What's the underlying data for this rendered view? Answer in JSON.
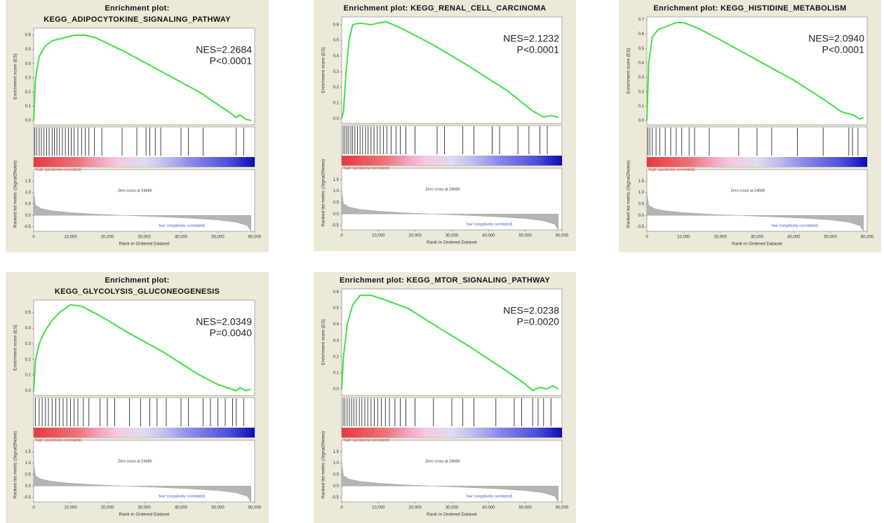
{
  "chart_data": [
    {
      "type": "gsea",
      "title": "Enrichment plot: KEGG_ADIPOCYTOKINE_SIGNALING_PATHWAY",
      "annotations": [
        "NES=2.2684",
        "P<0.0001"
      ],
      "ylabel": "Enrichment score (ES)",
      "metric_label": "Ranked list metric (Signal2Noise)",
      "xlabel": "Rank in Ordered Dataset",
      "high_label": "'high' (positively correlated)",
      "low_label": "'low' (negatively correlated)",
      "zero_cross_label": "Zero cross at 24689",
      "color": "#3fe03f",
      "hit_color": "#111111",
      "metric_color": "#b4b4b4",
      "xlim": [
        0,
        60000
      ],
      "xticks": [
        0,
        {
          "value": 10000,
          "label": "10,000"
        },
        {
          "value": 20000,
          "label": "20,000"
        },
        {
          "value": 30000,
          "label": "30,000"
        },
        {
          "value": 40000,
          "label": "40,000"
        },
        {
          "value": 50000,
          "label": "50,000"
        },
        {
          "value": 60000,
          "label": "60,000"
        }
      ],
      "ylim": [
        -0.03,
        0.65
      ],
      "yticks": [
        {
          "value": 0,
          "label": "0.0"
        },
        0.1,
        0.2,
        0.3,
        0.4,
        0.5,
        0.6
      ],
      "x": [
        0,
        500,
        1500,
        3000,
        5000,
        8000,
        11000,
        14000,
        17000,
        25000,
        35000,
        45000,
        53000,
        55000,
        56000,
        57500,
        59000
      ],
      "values": [
        0,
        0.3,
        0.45,
        0.52,
        0.56,
        0.58,
        0.6,
        0.6,
        0.58,
        0.48,
        0.34,
        0.2,
        0.06,
        0.02,
        0.04,
        0.01,
        0
      ],
      "hits": [
        300,
        800,
        1500,
        2100,
        2800,
        3500,
        4200,
        5000,
        5600,
        6300,
        7000,
        7800,
        8600,
        9400,
        10200,
        11000,
        12000,
        13000,
        14000,
        15000,
        16500,
        18500,
        24000,
        28000,
        30500,
        31500,
        33000,
        34500,
        40000,
        42000,
        46000,
        55000,
        57000
      ],
      "metric_ylim": [
        -0.7,
        2.0
      ],
      "metric_yticks": [
        1.5,
        {
          "value": 1,
          "label": "1.0"
        },
        0.5,
        {
          "value": 0,
          "label": "0.0"
        },
        -0.5
      ],
      "metric_x": [
        0,
        500,
        2000,
        5000,
        10000,
        17000,
        24689,
        32000,
        42000,
        50000,
        55000,
        58000,
        59000
      ],
      "metric_values": [
        1.0,
        0.45,
        0.3,
        0.2,
        0.12,
        0.05,
        0,
        -0.05,
        -0.12,
        -0.2,
        -0.3,
        -0.45,
        -0.7
      ]
    },
    {
      "type": "gsea",
      "title": "Enrichment plot: KEGG_RENAL_CELL_CARCINOMA",
      "annotations": [
        "NES=2.1232",
        "P<0.0001"
      ],
      "ylabel": "Enrichment score (ES)",
      "metric_label": "Ranked list metric (Signal2Noise)",
      "xlabel": "Rank in Ordered Dataset",
      "high_label": "'high' (positively correlated)",
      "low_label": "'low' (negatively correlated)",
      "zero_cross_label": "Zero cross at 24689",
      "color": "#3fe03f",
      "hit_color": "#111111",
      "metric_color": "#b4b4b4",
      "xlim": [
        0,
        60000
      ],
      "xticks": [
        0,
        {
          "value": 10000,
          "label": "10,000"
        },
        {
          "value": 20000,
          "label": "20,000"
        },
        {
          "value": 30000,
          "label": "30,000"
        },
        {
          "value": 40000,
          "label": "40,000"
        },
        {
          "value": 50000,
          "label": "50,000"
        },
        {
          "value": 60000,
          "label": "60,000"
        }
      ],
      "ylim": [
        -0.03,
        0.65
      ],
      "yticks": [
        {
          "value": 0,
          "label": "0.0"
        },
        0.1,
        0.2,
        0.3,
        0.4,
        0.5,
        0.6
      ],
      "x": [
        0,
        500,
        1200,
        2000,
        3000,
        5000,
        8000,
        12000,
        16000,
        25000,
        35000,
        45000,
        52000,
        55000,
        57000,
        59000
      ],
      "values": [
        0,
        0.05,
        0.3,
        0.5,
        0.6,
        0.61,
        0.6,
        0.62,
        0.58,
        0.47,
        0.33,
        0.18,
        0.05,
        0.01,
        0.02,
        0.01
      ],
      "hits": [
        400,
        900,
        1400,
        1900,
        2500,
        3000,
        3600,
        4300,
        5000,
        5700,
        6500,
        7200,
        8000,
        8800,
        9700,
        10500,
        11400,
        12300,
        13500,
        14800,
        16000,
        17500,
        20000,
        26000,
        28000,
        33000,
        36000,
        41000,
        43000,
        48000,
        51000,
        54000,
        56000
      ],
      "metric_ylim": [
        -0.7,
        2.0
      ],
      "metric_yticks": [
        1.5,
        {
          "value": 1,
          "label": "1.0"
        },
        0.5,
        {
          "value": 0,
          "label": "0.0"
        },
        -0.5
      ],
      "metric_x": [
        0,
        500,
        2000,
        5000,
        10000,
        17000,
        24689,
        32000,
        42000,
        50000,
        55000,
        58000,
        59000
      ],
      "metric_values": [
        1.0,
        0.45,
        0.3,
        0.2,
        0.12,
        0.05,
        0,
        -0.05,
        -0.12,
        -0.2,
        -0.3,
        -0.45,
        -0.7
      ]
    },
    {
      "type": "gsea",
      "title": "Enrichment plot: KEGG_HISTIDINE_METABOLISM",
      "annotations": [
        "NES=2.0940",
        "P<0.0001"
      ],
      "ylabel": "Enrichment score (ES)",
      "metric_label": "Ranked list metric (Signal2Noise)",
      "xlabel": "Rank in Ordered Dataset",
      "high_label": "'high' (positively correlated)",
      "low_label": "'low' (negatively correlated)",
      "zero_cross_label": "Zero cross at 24689",
      "color": "#3fe03f",
      "hit_color": "#111111",
      "metric_color": "#b4b4b4",
      "xlim": [
        0,
        60000
      ],
      "xticks": [
        0,
        {
          "value": 10000,
          "label": "10,000"
        },
        {
          "value": 20000,
          "label": "20,000"
        },
        {
          "value": 30000,
          "label": "30,000"
        },
        {
          "value": 40000,
          "label": "40,000"
        },
        {
          "value": 50000,
          "label": "50,000"
        },
        {
          "value": 60000,
          "label": "60,000"
        }
      ],
      "ylim": [
        -0.03,
        0.72
      ],
      "yticks": [
        {
          "value": 0,
          "label": "0.0"
        },
        0.1,
        0.2,
        0.3,
        0.4,
        0.5,
        0.6,
        0.7
      ],
      "x": [
        0,
        500,
        1500,
        3000,
        5000,
        8000,
        10000,
        14000,
        20000,
        30000,
        40000,
        48000,
        53000,
        56000,
        58000,
        59000
      ],
      "values": [
        0,
        0.4,
        0.58,
        0.63,
        0.65,
        0.68,
        0.68,
        0.64,
        0.56,
        0.42,
        0.28,
        0.15,
        0.06,
        0.04,
        0.01,
        0.02
      ],
      "hits": [
        300,
        800,
        1500,
        2500,
        3500,
        5000,
        6500,
        8000,
        9500,
        11500,
        13000,
        17000,
        25000,
        30000,
        34000,
        41000,
        48000,
        55000,
        56000,
        57500
      ],
      "metric_ylim": [
        -0.7,
        2.0
      ],
      "metric_yticks": [
        1.5,
        {
          "value": 1,
          "label": "1.0"
        },
        0.5,
        {
          "value": 0,
          "label": "0.0"
        },
        -0.5
      ],
      "metric_x": [
        0,
        500,
        2000,
        5000,
        10000,
        17000,
        24689,
        32000,
        42000,
        50000,
        55000,
        58000,
        59000
      ],
      "metric_values": [
        1.0,
        0.45,
        0.3,
        0.2,
        0.12,
        0.05,
        0,
        -0.05,
        -0.12,
        -0.2,
        -0.3,
        -0.45,
        -0.7
      ]
    },
    {
      "type": "gsea",
      "title": "Enrichment plot: KEGG_GLYCOLYSIS_GLUCONEOGENESIS",
      "annotations": [
        "NES=2.0349",
        "P=0.0040"
      ],
      "ylabel": "Enrichment score (ES)",
      "metric_label": "Ranked list metric (Signal2Noise)",
      "xlabel": "Rank in Ordered Dataset",
      "high_label": "'high' (positively correlated)",
      "low_label": "'low' (negatively correlated)",
      "zero_cross_label": "Zero cross at 24689",
      "color": "#3fe03f",
      "hit_color": "#111111",
      "metric_color": "#b4b4b4",
      "xlim": [
        0,
        60000
      ],
      "xticks": [
        0,
        {
          "value": 10000,
          "label": "10,000"
        },
        {
          "value": 20000,
          "label": "20,000"
        },
        {
          "value": 30000,
          "label": "30,000"
        },
        {
          "value": 40000,
          "label": "40,000"
        },
        {
          "value": 50000,
          "label": "50,000"
        },
        {
          "value": 60000,
          "label": "60,000"
        }
      ],
      "ylim": [
        -0.03,
        0.58
      ],
      "yticks": [
        {
          "value": 0,
          "label": "0.0"
        },
        0.1,
        0.2,
        0.3,
        0.4,
        0.5
      ],
      "x": [
        0,
        500,
        1500,
        3000,
        5000,
        7000,
        10000,
        13000,
        18000,
        25000,
        35000,
        45000,
        50000,
        55000,
        56000,
        57500,
        59000
      ],
      "values": [
        0,
        0.2,
        0.3,
        0.38,
        0.45,
        0.5,
        0.55,
        0.54,
        0.48,
        0.38,
        0.25,
        0.1,
        0.04,
        0,
        0.02,
        0,
        0.01
      ],
      "hits": [
        500,
        1500,
        2300,
        3200,
        4000,
        5000,
        6000,
        7000,
        8000,
        9000,
        10000,
        11000,
        12000,
        13500,
        15000,
        18000,
        20000,
        22000,
        26000,
        29000,
        31500,
        33500,
        36000,
        40000,
        42000,
        46000,
        48000,
        50000,
        52000,
        54000,
        55000,
        57000
      ],
      "metric_ylim": [
        -0.7,
        2.0
      ],
      "metric_yticks": [
        1.5,
        {
          "value": 1,
          "label": "1.0"
        },
        0.5,
        {
          "value": 0,
          "label": "0.0"
        },
        -0.5
      ],
      "metric_x": [
        0,
        500,
        2000,
        5000,
        10000,
        17000,
        24689,
        32000,
        42000,
        50000,
        55000,
        58000,
        59000
      ],
      "metric_values": [
        1.0,
        0.45,
        0.3,
        0.2,
        0.12,
        0.05,
        0,
        -0.05,
        -0.12,
        -0.2,
        -0.3,
        -0.45,
        -0.7
      ]
    },
    {
      "type": "gsea",
      "title": "Enrichment plot: KEGG_MTOR_SIGNALING_PATHWAY",
      "annotations": [
        "NES=2.0238",
        "P=0.0020"
      ],
      "ylabel": "Enrichment score (ES)",
      "metric_label": "Ranked list metric (Signal2Noise)",
      "xlabel": "Rank in Ordered Dataset",
      "high_label": "'high' (positively correlated)",
      "low_label": "'low' (negatively correlated)",
      "zero_cross_label": "Zero cross at 24689",
      "color": "#3fe03f",
      "hit_color": "#111111",
      "metric_color": "#b4b4b4",
      "xlim": [
        0,
        60000
      ],
      "xticks": [
        0,
        {
          "value": 10000,
          "label": "10,000"
        },
        {
          "value": 20000,
          "label": "20,000"
        },
        {
          "value": 30000,
          "label": "30,000"
        },
        {
          "value": 40000,
          "label": "40,000"
        },
        {
          "value": 50000,
          "label": "50,000"
        },
        {
          "value": 60000,
          "label": "60,000"
        }
      ],
      "ylim": [
        -0.04,
        0.62
      ],
      "yticks": [
        {
          "value": 0,
          "label": "0.0"
        },
        0.1,
        0.2,
        0.3,
        0.4,
        0.5,
        0.6
      ],
      "x": [
        0,
        500,
        1500,
        3000,
        5000,
        8000,
        12000,
        18000,
        25000,
        35000,
        45000,
        50000,
        52000,
        54000,
        56000,
        57500,
        59000
      ],
      "values": [
        0,
        0.2,
        0.4,
        0.52,
        0.58,
        0.58,
        0.55,
        0.5,
        0.4,
        0.26,
        0.11,
        0.03,
        -0.01,
        0.01,
        0,
        0.02,
        0
      ],
      "hits": [
        400,
        900,
        1500,
        2100,
        2700,
        3300,
        4000,
        4800,
        5500,
        6300,
        7100,
        8000,
        8900,
        9800,
        10800,
        11900,
        13000,
        14500,
        16000,
        17500,
        20000,
        25000,
        30000,
        33000,
        36000,
        42000,
        47000,
        49000,
        52000,
        53500,
        55000,
        57000
      ],
      "metric_ylim": [
        -0.7,
        2.0
      ],
      "metric_yticks": [
        1.5,
        {
          "value": 1,
          "label": "1.0"
        },
        0.5,
        {
          "value": 0,
          "label": "0.0"
        },
        -0.5
      ],
      "metric_x": [
        0,
        500,
        2000,
        5000,
        10000,
        17000,
        24689,
        32000,
        42000,
        50000,
        55000,
        58000,
        59000
      ],
      "metric_values": [
        1.0,
        0.45,
        0.3,
        0.2,
        0.12,
        0.05,
        0,
        -0.05,
        -0.12,
        -0.2,
        -0.3,
        -0.45,
        -0.7
      ]
    }
  ]
}
